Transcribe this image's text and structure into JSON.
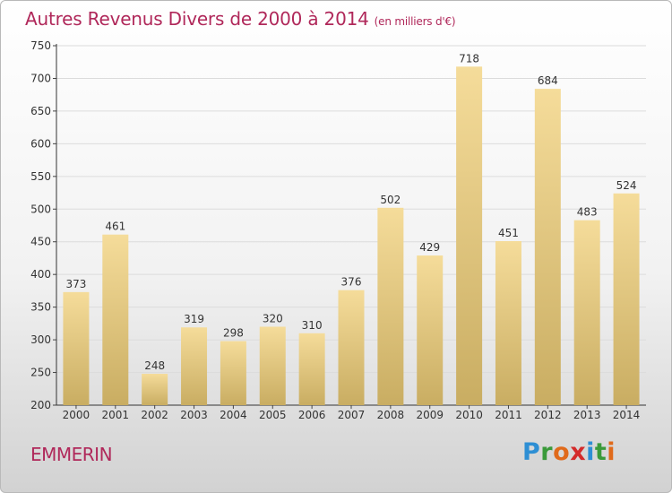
{
  "title": {
    "main": "Autres Revenus Divers de 2000 à 2014",
    "unit": "(en milliers d'€)"
  },
  "commune": "EMMERIN",
  "logo": {
    "letters": [
      "P",
      "r",
      "o",
      "x",
      "i",
      "t",
      "i"
    ],
    "colors": [
      "#2e8fd4",
      "#3a9a3a",
      "#e06a1b",
      "#d42b2b",
      "#2e8fd4",
      "#3a9a3a",
      "#e06a1b"
    ]
  },
  "colors": {
    "bar_top": "#f5dc9a",
    "bar_bottom": "#c9ad62",
    "title": "#b0285a"
  },
  "chart_data": {
    "type": "bar",
    "categories": [
      "2000",
      "2001",
      "2002",
      "2003",
      "2004",
      "2005",
      "2006",
      "2007",
      "2008",
      "2009",
      "2010",
      "2011",
      "2012",
      "2013",
      "2014"
    ],
    "values": [
      373,
      461,
      248,
      319,
      298,
      320,
      310,
      376,
      502,
      429,
      718,
      451,
      684,
      483,
      524
    ],
    "ylim": [
      200,
      750
    ],
    "yticks": [
      200,
      250,
      300,
      350,
      400,
      450,
      500,
      550,
      600,
      650,
      700,
      750
    ],
    "grid": true,
    "title": "Autres Revenus Divers de 2000 à 2014",
    "xlabel": "",
    "ylabel": ""
  }
}
